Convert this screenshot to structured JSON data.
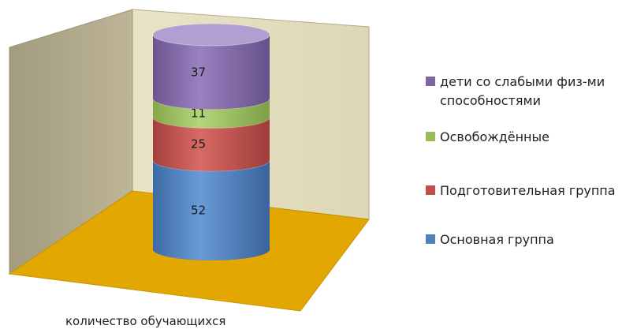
{
  "chart_data": {
    "type": "bar",
    "subtype": "stacked-cylinder-3d",
    "categories": [
      "количество обучающихся"
    ],
    "series": [
      {
        "name": "Основная группа",
        "values": [
          52
        ],
        "color": "#4f81bd"
      },
      {
        "name": "Подготовительная группа",
        "values": [
          25
        ],
        "color": "#c0504d"
      },
      {
        "name": "Освобождённые",
        "values": [
          11
        ],
        "color": "#9bbb59"
      },
      {
        "name": "дети со слабыми физ-ми способностями",
        "values": [
          37
        ],
        "color": "#8064a2"
      }
    ],
    "xlabel": "количество обучающихся",
    "legend_position": "right",
    "grid": false,
    "floor_color": "#e2a700",
    "wall_color": "#c8c0a0"
  }
}
